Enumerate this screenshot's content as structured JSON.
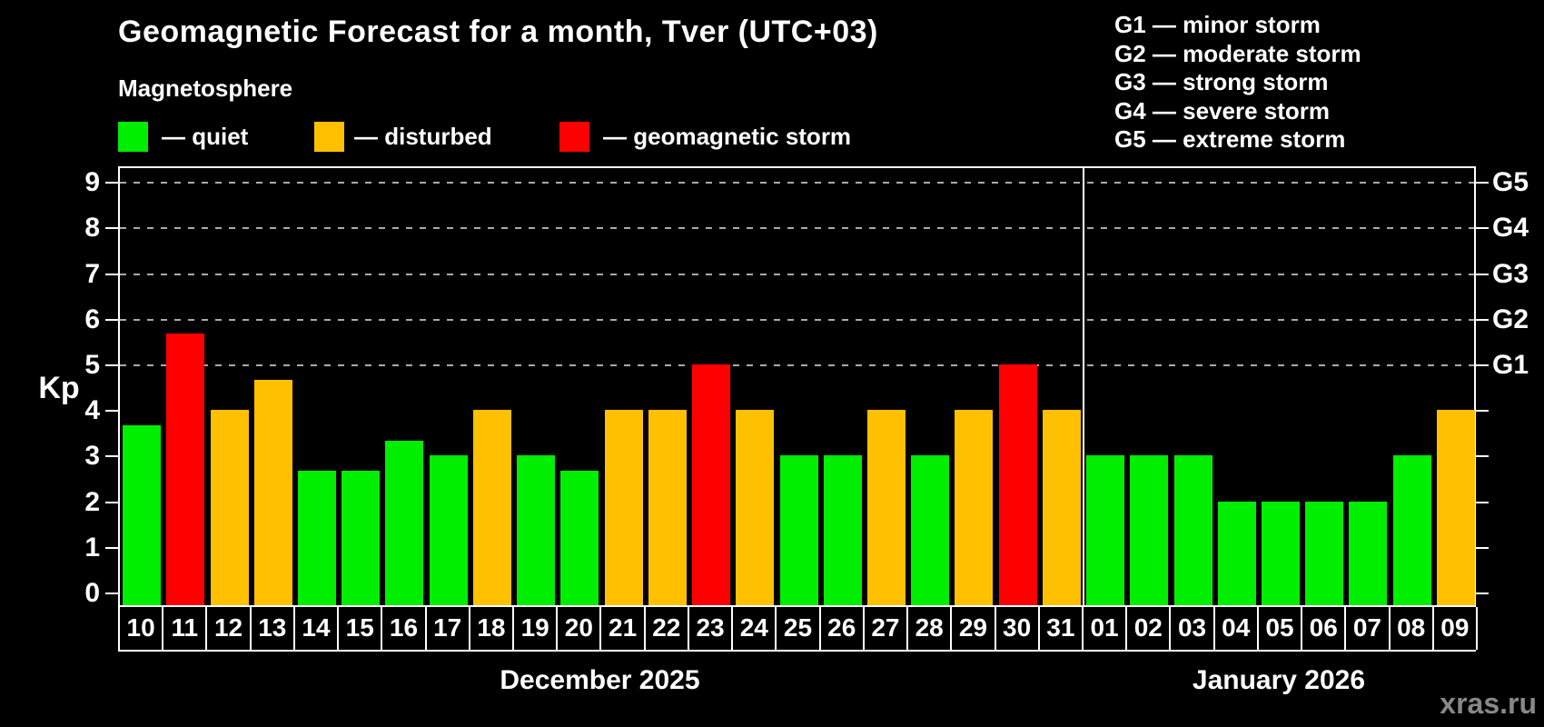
{
  "header": {
    "title": "Geomagnetic Forecast for a month, Tver (UTC+03)",
    "subtitle": "Magnetosphere"
  },
  "legend": {
    "items": [
      {
        "key": "quiet",
        "label": "— quiet"
      },
      {
        "key": "disturbed",
        "label": "— disturbed"
      },
      {
        "key": "storm",
        "label": "— geomagnetic storm"
      }
    ]
  },
  "g_scale_legend": [
    "G1 — minor storm",
    "G2 — moderate storm",
    "G3 — strong storm",
    "G4 — severe storm",
    "G5 — extreme storm"
  ],
  "axes": {
    "ylabel": "Kp",
    "left_ticks": [
      0,
      1,
      2,
      3,
      4,
      5,
      6,
      7,
      8,
      9
    ],
    "right_labels": [
      {
        "kp": 5,
        "label": "G1"
      },
      {
        "kp": 6,
        "label": "G2"
      },
      {
        "kp": 7,
        "label": "G3"
      },
      {
        "kp": 8,
        "label": "G4"
      },
      {
        "kp": 9,
        "label": "G5"
      }
    ]
  },
  "colors": {
    "quiet": "#00ee00",
    "disturbed": "#ffc000",
    "storm": "#ff0000",
    "grid": "#aaaaaa"
  },
  "footer": {
    "watermark": "xras.ru"
  },
  "chart_data": {
    "type": "bar",
    "title": "Geomagnetic Forecast for a month, Tver (UTC+03)",
    "ylabel": "Kp",
    "ylim": [
      0,
      9
    ],
    "grid": "dashed horizontal at Kp 5-9",
    "legend_position": "top",
    "gridlines_at": [
      5,
      6,
      7,
      8,
      9
    ],
    "kp_to_g": {
      "5": "G1",
      "6": "G2",
      "7": "G3",
      "8": "G4",
      "9": "G5"
    },
    "groups": [
      {
        "label": "December 2025",
        "days": [
          "10",
          "11",
          "12",
          "13",
          "14",
          "15",
          "16",
          "17",
          "18",
          "19",
          "20",
          "21",
          "22",
          "23",
          "24",
          "25",
          "26",
          "27",
          "28",
          "29",
          "30",
          "31"
        ],
        "values": [
          3.67,
          5.67,
          4,
          4.67,
          2.67,
          2.67,
          3.33,
          3,
          4,
          3,
          2.67,
          4,
          4,
          5,
          4,
          3,
          3,
          4,
          3,
          4,
          5,
          4
        ],
        "status": [
          "quiet",
          "storm",
          "disturbed",
          "disturbed",
          "quiet",
          "quiet",
          "quiet",
          "quiet",
          "disturbed",
          "quiet",
          "quiet",
          "disturbed",
          "disturbed",
          "storm",
          "disturbed",
          "quiet",
          "quiet",
          "disturbed",
          "quiet",
          "disturbed",
          "storm",
          "disturbed"
        ]
      },
      {
        "label": "January 2026",
        "days": [
          "01",
          "02",
          "03",
          "04",
          "05",
          "06",
          "07",
          "08",
          "09"
        ],
        "values": [
          3,
          3,
          3,
          2,
          2,
          2,
          2,
          3,
          4
        ],
        "status": [
          "quiet",
          "quiet",
          "quiet",
          "quiet",
          "quiet",
          "quiet",
          "quiet",
          "quiet",
          "disturbed"
        ]
      }
    ]
  }
}
